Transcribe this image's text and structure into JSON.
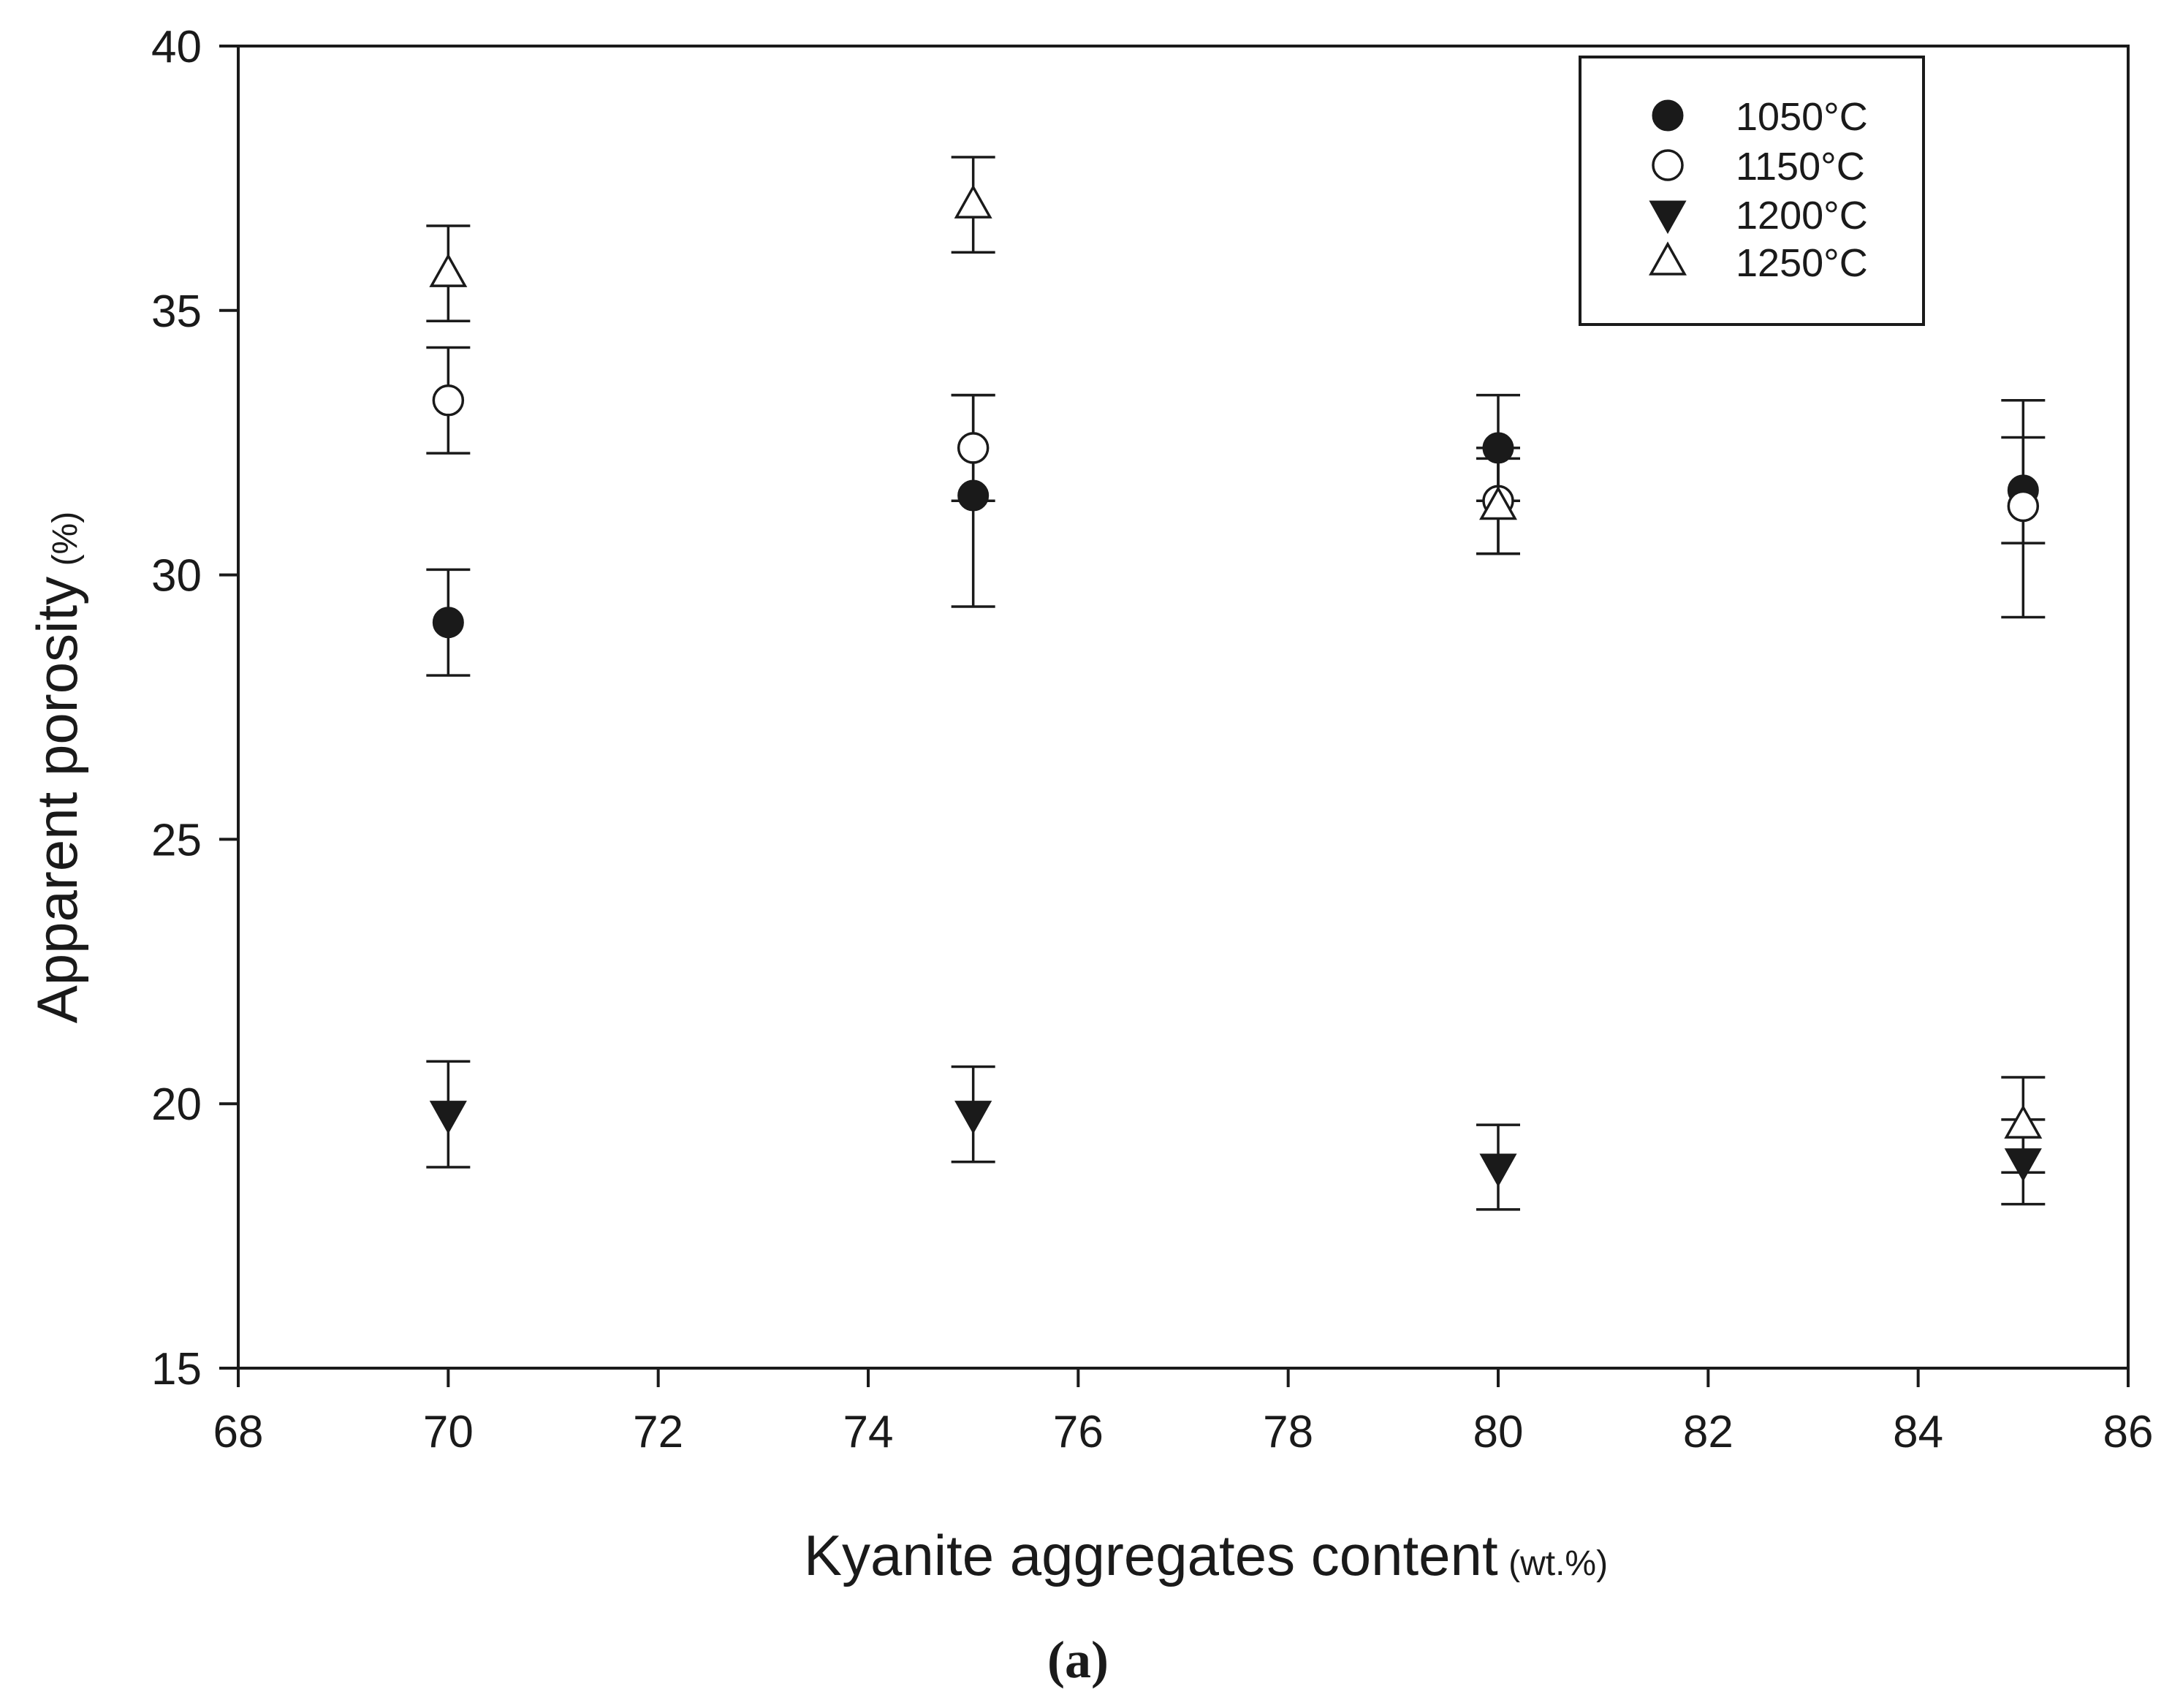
{
  "chart_data": {
    "type": "scatter",
    "xlabel": "Kyanite aggregates content",
    "xlabel_unit": "(wt.%)",
    "ylabel": "Apparent porosity",
    "ylabel_unit": "(%)",
    "panel_label": "(a)",
    "xlim": [
      68,
      86
    ],
    "ylim": [
      15,
      40
    ],
    "xticks": [
      68,
      70,
      72,
      74,
      76,
      78,
      80,
      82,
      84,
      86
    ],
    "yticks": [
      15,
      20,
      25,
      30,
      35,
      40
    ],
    "grid": false,
    "legend_position": "top-right",
    "series": [
      {
        "name": "1050°C",
        "marker": "circle-filled",
        "points": [
          {
            "x": 70,
            "y": 29.1,
            "err_low": 28.1,
            "err_high": 30.1
          },
          {
            "x": 75,
            "y": 31.5,
            "err_low": 29.4,
            "err_high": 33.4
          },
          {
            "x": 80,
            "y": 32.4,
            "err_low": 31.4,
            "err_high": 33.4
          },
          {
            "x": 85,
            "y": 31.6,
            "err_low": 30.6,
            "err_high": 32.6
          }
        ]
      },
      {
        "name": "1150°C",
        "marker": "circle-open",
        "points": [
          {
            "x": 70,
            "y": 33.3,
            "err_low": 32.3,
            "err_high": 34.3
          },
          {
            "x": 75,
            "y": 32.4,
            "err_low": 31.4,
            "err_high": 33.4
          },
          {
            "x": 80,
            "y": 31.4,
            "err_low": 30.4,
            "err_high": 32.4
          },
          {
            "x": 85,
            "y": 31.3,
            "err_low": 29.2,
            "err_high": 33.3
          }
        ]
      },
      {
        "name": "1200°C",
        "marker": "triangle-down-filled",
        "points": [
          {
            "x": 70,
            "y": 19.8,
            "err_low": 18.8,
            "err_high": 20.8
          },
          {
            "x": 75,
            "y": 19.8,
            "err_low": 18.9,
            "err_high": 20.7
          },
          {
            "x": 80,
            "y": 18.8,
            "err_low": 18.0,
            "err_high": 19.6
          },
          {
            "x": 85,
            "y": 18.9,
            "err_low": 18.1,
            "err_high": 19.7
          }
        ]
      },
      {
        "name": "1250°C",
        "marker": "triangle-up-open",
        "points": [
          {
            "x": 70,
            "y": 35.7,
            "err_low": 34.8,
            "err_high": 36.6
          },
          {
            "x": 75,
            "y": 37.0,
            "err_low": 36.1,
            "err_high": 37.9
          },
          {
            "x": 80,
            "y": 31.3,
            "err_low": 30.4,
            "err_high": 32.2
          },
          {
            "x": 85,
            "y": 19.6,
            "err_low": 18.7,
            "err_high": 20.5
          }
        ]
      }
    ]
  }
}
